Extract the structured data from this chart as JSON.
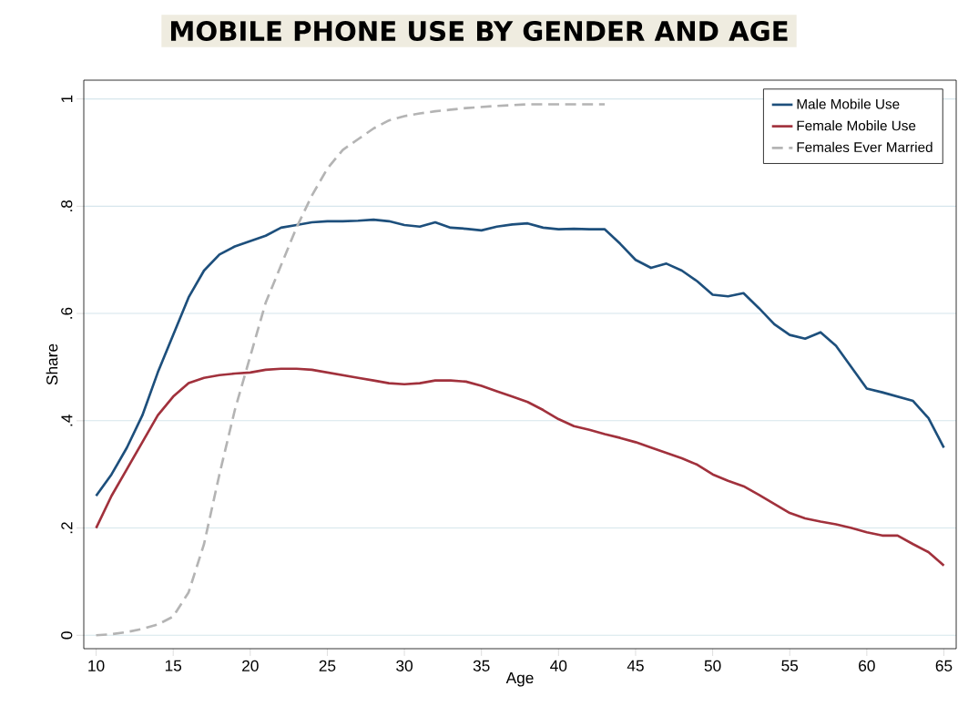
{
  "chart_data": {
    "type": "line",
    "title": "MOBILE PHONE USE BY GENDER AND AGE",
    "xlabel": "Age",
    "ylabel": "Share",
    "x": [
      10,
      11,
      12,
      13,
      14,
      15,
      16,
      17,
      18,
      19,
      20,
      21,
      22,
      23,
      24,
      25,
      26,
      27,
      28,
      29,
      30,
      31,
      32,
      33,
      34,
      35,
      36,
      37,
      38,
      39,
      40,
      41,
      42,
      43,
      44,
      45,
      46,
      47,
      48,
      49,
      50,
      51,
      52,
      53,
      54,
      55,
      56,
      57,
      58,
      59,
      60,
      61,
      62,
      63,
      64,
      65
    ],
    "series": [
      {
        "name": "Male Mobile Use",
        "color": "#1d4f7c",
        "values": [
          0.26,
          0.3,
          0.35,
          0.41,
          0.49,
          0.56,
          0.63,
          0.68,
          0.71,
          0.725,
          0.735,
          0.745,
          0.76,
          0.765,
          0.77,
          0.772,
          0.772,
          0.773,
          0.775,
          0.772,
          0.765,
          0.762,
          0.77,
          0.76,
          0.758,
          0.755,
          0.762,
          0.766,
          0.768,
          0.76,
          0.757,
          0.758,
          0.757,
          0.757,
          0.73,
          0.7,
          0.685,
          0.693,
          0.68,
          0.66,
          0.635,
          0.632,
          0.638,
          0.61,
          0.58,
          0.56,
          0.553,
          0.565,
          0.54,
          0.5,
          0.46,
          0.453,
          0.445,
          0.437,
          0.405,
          0.35
        ]
      },
      {
        "name": "Female Mobile Use",
        "color": "#a1313c",
        "values": [
          0.2,
          0.26,
          0.31,
          0.36,
          0.41,
          0.445,
          0.47,
          0.48,
          0.485,
          0.488,
          0.49,
          0.495,
          0.497,
          0.497,
          0.495,
          0.49,
          0.485,
          0.48,
          0.475,
          0.47,
          0.468,
          0.47,
          0.475,
          0.475,
          0.473,
          0.465,
          0.455,
          0.445,
          0.435,
          0.42,
          0.403,
          0.39,
          0.383,
          0.375,
          0.368,
          0.36,
          0.35,
          0.34,
          0.33,
          0.318,
          0.3,
          0.288,
          0.278,
          0.262,
          0.245,
          0.228,
          0.218,
          0.212,
          0.207,
          0.2,
          0.192,
          0.186,
          0.186,
          0.17,
          0.155,
          0.13
        ]
      },
      {
        "name": "Females Ever Married",
        "color": "#b4b4b4",
        "line_style": "dashed",
        "x": [
          10,
          11,
          12,
          13,
          14,
          15,
          16,
          17,
          18,
          19,
          20,
          21,
          22,
          23,
          24,
          25,
          26,
          27,
          28,
          29,
          30,
          31,
          32,
          33,
          34,
          35,
          36,
          38,
          40,
          42,
          43
        ],
        "values": [
          0,
          0.002,
          0.006,
          0.012,
          0.02,
          0.035,
          0.08,
          0.17,
          0.3,
          0.42,
          0.52,
          0.62,
          0.69,
          0.76,
          0.82,
          0.87,
          0.905,
          0.925,
          0.945,
          0.96,
          0.968,
          0.973,
          0.977,
          0.98,
          0.983,
          0.985,
          0.987,
          0.99,
          0.99,
          0.99,
          0.99
        ]
      }
    ],
    "xlim": [
      9.2,
      65.8
    ],
    "ylim": [
      -0.025,
      1.035
    ],
    "xticks": [
      10,
      15,
      20,
      25,
      30,
      35,
      40,
      45,
      50,
      55,
      60,
      65
    ],
    "yticks": [
      0,
      {
        "value": 0.2,
        "label": ".2"
      },
      {
        "value": 0.4,
        "label": ".4"
      },
      {
        "value": 0.6,
        "label": ".6"
      },
      {
        "value": 0.8,
        "label": ".8"
      },
      1
    ],
    "grid": "y",
    "legend": "top right",
    "marker": "none",
    "line_style": "solid"
  }
}
